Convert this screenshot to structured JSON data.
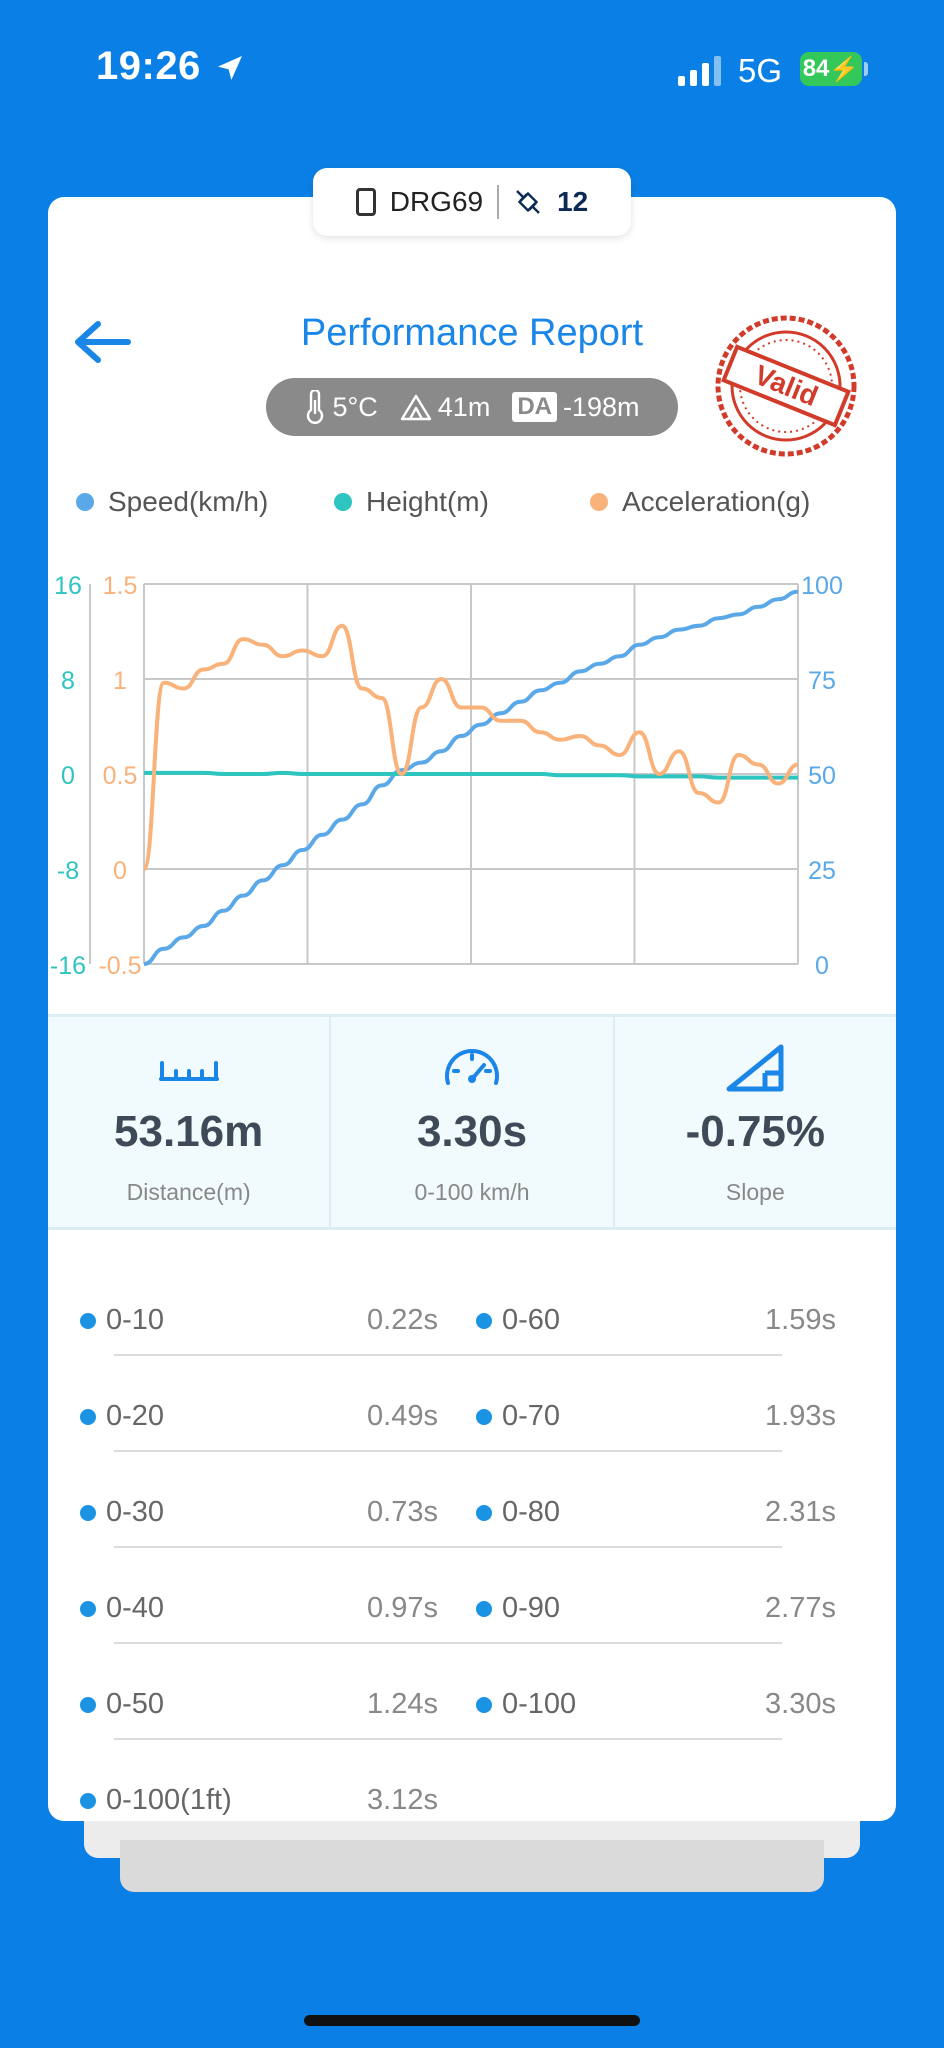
{
  "status": {
    "time": "19:26",
    "network": "5G",
    "battery": "84"
  },
  "device": {
    "name": "DRG69",
    "satellites": "12"
  },
  "header": {
    "title": "Performance Report",
    "stamp_text": "Valid"
  },
  "conditions": {
    "temperature": "5°C",
    "altitude": "41m",
    "da_label": "DA",
    "density_altitude": "-198m"
  },
  "legend": {
    "speed": "Speed(km/h)",
    "height": "Height(m)",
    "acceleration": "Acceleration(g)"
  },
  "colors": {
    "speed": "#5aa8e8",
    "height": "#2ec4c0",
    "acceleration": "#f9b27a",
    "accent": "#1a86e8",
    "background": "#0a80e6"
  },
  "chart_data": {
    "type": "line",
    "x": [
      0.0,
      0.1,
      0.2,
      0.3,
      0.4,
      0.5,
      0.6,
      0.7,
      0.8,
      0.9,
      1.0,
      1.1,
      1.2,
      1.3,
      1.4,
      1.5,
      1.6,
      1.7,
      1.8,
      1.9,
      2.0,
      2.1,
      2.2,
      2.3,
      2.4,
      2.5,
      2.6,
      2.7,
      2.8,
      2.9,
      3.0,
      3.1,
      3.2,
      3.3
    ],
    "series": [
      {
        "name": "Speed(km/h)",
        "axis": "right",
        "ylim": [
          0,
          100
        ],
        "values": [
          0,
          4,
          7,
          10,
          14,
          18,
          22,
          26,
          30,
          34,
          38,
          42,
          47,
          51,
          53,
          56,
          60,
          63,
          66,
          69,
          72,
          74,
          77,
          79,
          81,
          84,
          86,
          88,
          89,
          91,
          92,
          94,
          96,
          98
        ]
      },
      {
        "name": "Height(m)",
        "axis": "left-outer",
        "ylim": [
          -16,
          16
        ],
        "values": [
          0.1,
          0.1,
          0.1,
          0.1,
          0.0,
          0.0,
          0.0,
          0.1,
          0.0,
          0.0,
          0.0,
          0.0,
          0.0,
          0.0,
          0.0,
          0.0,
          0.0,
          0.0,
          0.0,
          0.0,
          0.0,
          -0.1,
          -0.1,
          -0.1,
          -0.1,
          -0.2,
          -0.2,
          -0.2,
          -0.2,
          -0.3,
          -0.3,
          -0.3,
          -0.3,
          -0.3
        ]
      },
      {
        "name": "Acceleration(g)",
        "axis": "left-inner",
        "ylim": [
          -0.5,
          1.5
        ],
        "values": [
          0.0,
          0.98,
          0.95,
          1.05,
          1.08,
          1.21,
          1.18,
          1.12,
          1.15,
          1.12,
          1.28,
          0.95,
          0.9,
          0.5,
          0.85,
          1.0,
          0.85,
          0.85,
          0.78,
          0.78,
          0.72,
          0.68,
          0.7,
          0.65,
          0.6,
          0.72,
          0.5,
          0.62,
          0.4,
          0.35,
          0.6,
          0.55,
          0.45,
          0.55
        ]
      }
    ],
    "left_outer_ticks": [
      "16",
      "8",
      "0",
      "-8",
      "-16"
    ],
    "left_inner_ticks": [
      "1.5",
      "1",
      "0.5",
      "0",
      "-0.5"
    ],
    "right_ticks": [
      "100",
      "75",
      "50",
      "25",
      "0"
    ],
    "grid": true
  },
  "metrics": [
    {
      "value": "53.16m",
      "label": "Distance(m)"
    },
    {
      "value": "3.30s",
      "label": "0-100 km/h"
    },
    {
      "value": "-0.75%",
      "label": "Slope"
    }
  ],
  "times": [
    {
      "left_label": "0-10",
      "left_value": "0.22s",
      "right_label": "0-60",
      "right_value": "1.59s"
    },
    {
      "left_label": "0-20",
      "left_value": "0.49s",
      "right_label": "0-70",
      "right_value": "1.93s"
    },
    {
      "left_label": "0-30",
      "left_value": "0.73s",
      "right_label": "0-80",
      "right_value": "2.31s"
    },
    {
      "left_label": "0-40",
      "left_value": "0.97s",
      "right_label": "0-90",
      "right_value": "2.77s"
    },
    {
      "left_label": "0-50",
      "left_value": "1.24s",
      "right_label": "0-100",
      "right_value": "3.30s"
    },
    {
      "left_label": "0-100(1ft)",
      "left_value": "3.12s",
      "right_label": "",
      "right_value": ""
    }
  ]
}
